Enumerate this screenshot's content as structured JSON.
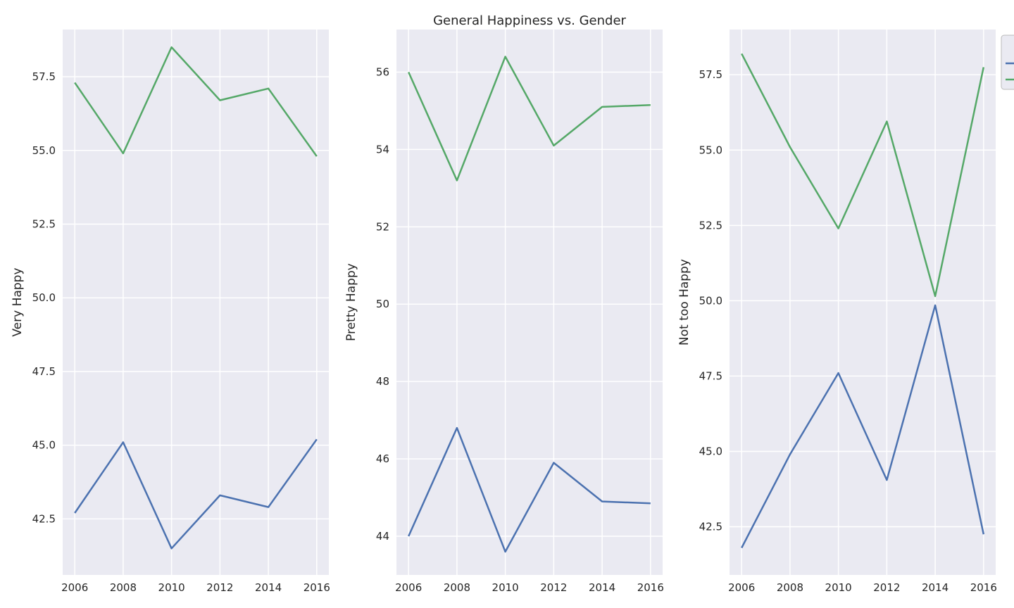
{
  "figure": {
    "title": "General Happiness vs. Gender"
  },
  "chart_data": [
    {
      "type": "line",
      "ylabel": "Very Happy",
      "xlim": [
        2005.5,
        2016.5
      ],
      "ylim": [
        40.6,
        59.1
      ],
      "xticks": [
        2006,
        2008,
        2010,
        2012,
        2014,
        2016
      ],
      "xtick_labels": [
        "2006",
        "2008",
        "2010",
        "2012",
        "2014",
        "2016"
      ],
      "yticks": [
        42.5,
        45.0,
        47.5,
        50.0,
        52.5,
        55.0,
        57.5
      ],
      "ytick_labels": [
        "42.5",
        "45.0",
        "47.5",
        "50.0",
        "52.5",
        "55.0",
        "57.5"
      ],
      "grid": true,
      "x": [
        2006,
        2008,
        2010,
        2012,
        2014,
        2016
      ],
      "series": [
        {
          "color": "#4c72b0",
          "values": [
            42.7,
            45.1,
            41.5,
            43.3,
            42.9,
            45.2
          ]
        },
        {
          "color": "#55a868",
          "values": [
            57.3,
            54.9,
            58.5,
            56.7,
            57.1,
            54.8
          ]
        }
      ]
    },
    {
      "type": "line",
      "ylabel": "Pretty Happy",
      "xlim": [
        2005.5,
        2016.5
      ],
      "ylim": [
        43.0,
        57.1
      ],
      "xticks": [
        2006,
        2008,
        2010,
        2012,
        2014,
        2016
      ],
      "xtick_labels": [
        "2006",
        "2008",
        "2010",
        "2012",
        "2014",
        "2016"
      ],
      "yticks": [
        44,
        46,
        48,
        50,
        52,
        54,
        56
      ],
      "ytick_labels": [
        "44",
        "46",
        "48",
        "50",
        "52",
        "54",
        "56"
      ],
      "grid": true,
      "x": [
        2006,
        2008,
        2010,
        2012,
        2014,
        2016
      ],
      "series": [
        {
          "color": "#4c72b0",
          "values": [
            44.0,
            46.8,
            43.6,
            45.9,
            44.9,
            44.85
          ]
        },
        {
          "color": "#55a868",
          "values": [
            56.0,
            53.2,
            56.4,
            54.1,
            55.1,
            55.15
          ]
        }
      ]
    },
    {
      "type": "line",
      "ylabel": "Not too Happy",
      "xlim": [
        2005.5,
        2016.5
      ],
      "ylim": [
        40.9,
        59.0
      ],
      "xticks": [
        2006,
        2008,
        2010,
        2012,
        2014,
        2016
      ],
      "xtick_labels": [
        "2006",
        "2008",
        "2010",
        "2012",
        "2014",
        "2016"
      ],
      "yticks": [
        42.5,
        45.0,
        47.5,
        50.0,
        52.5,
        55.0,
        57.5
      ],
      "ytick_labels": [
        "42.5",
        "45.0",
        "47.5",
        "50.0",
        "52.5",
        "55.0",
        "57.5"
      ],
      "grid": true,
      "x": [
        2006,
        2008,
        2010,
        2012,
        2014,
        2016
      ],
      "series": [
        {
          "color": "#4c72b0",
          "values": [
            41.8,
            44.9,
            47.6,
            44.05,
            49.85,
            42.25
          ]
        },
        {
          "color": "#55a868",
          "values": [
            58.2,
            55.1,
            52.4,
            55.95,
            50.15,
            57.75
          ]
        }
      ]
    }
  ],
  "legend": {
    "placement": "top-right, clipped at figure edge",
    "entries": [
      {
        "color": "#4c72b0"
      },
      {
        "color": "#55a868"
      }
    ]
  },
  "style": {
    "axes_bg": "#eaeaf2",
    "grid_color": "#ffffff",
    "text_color": "#262626"
  }
}
